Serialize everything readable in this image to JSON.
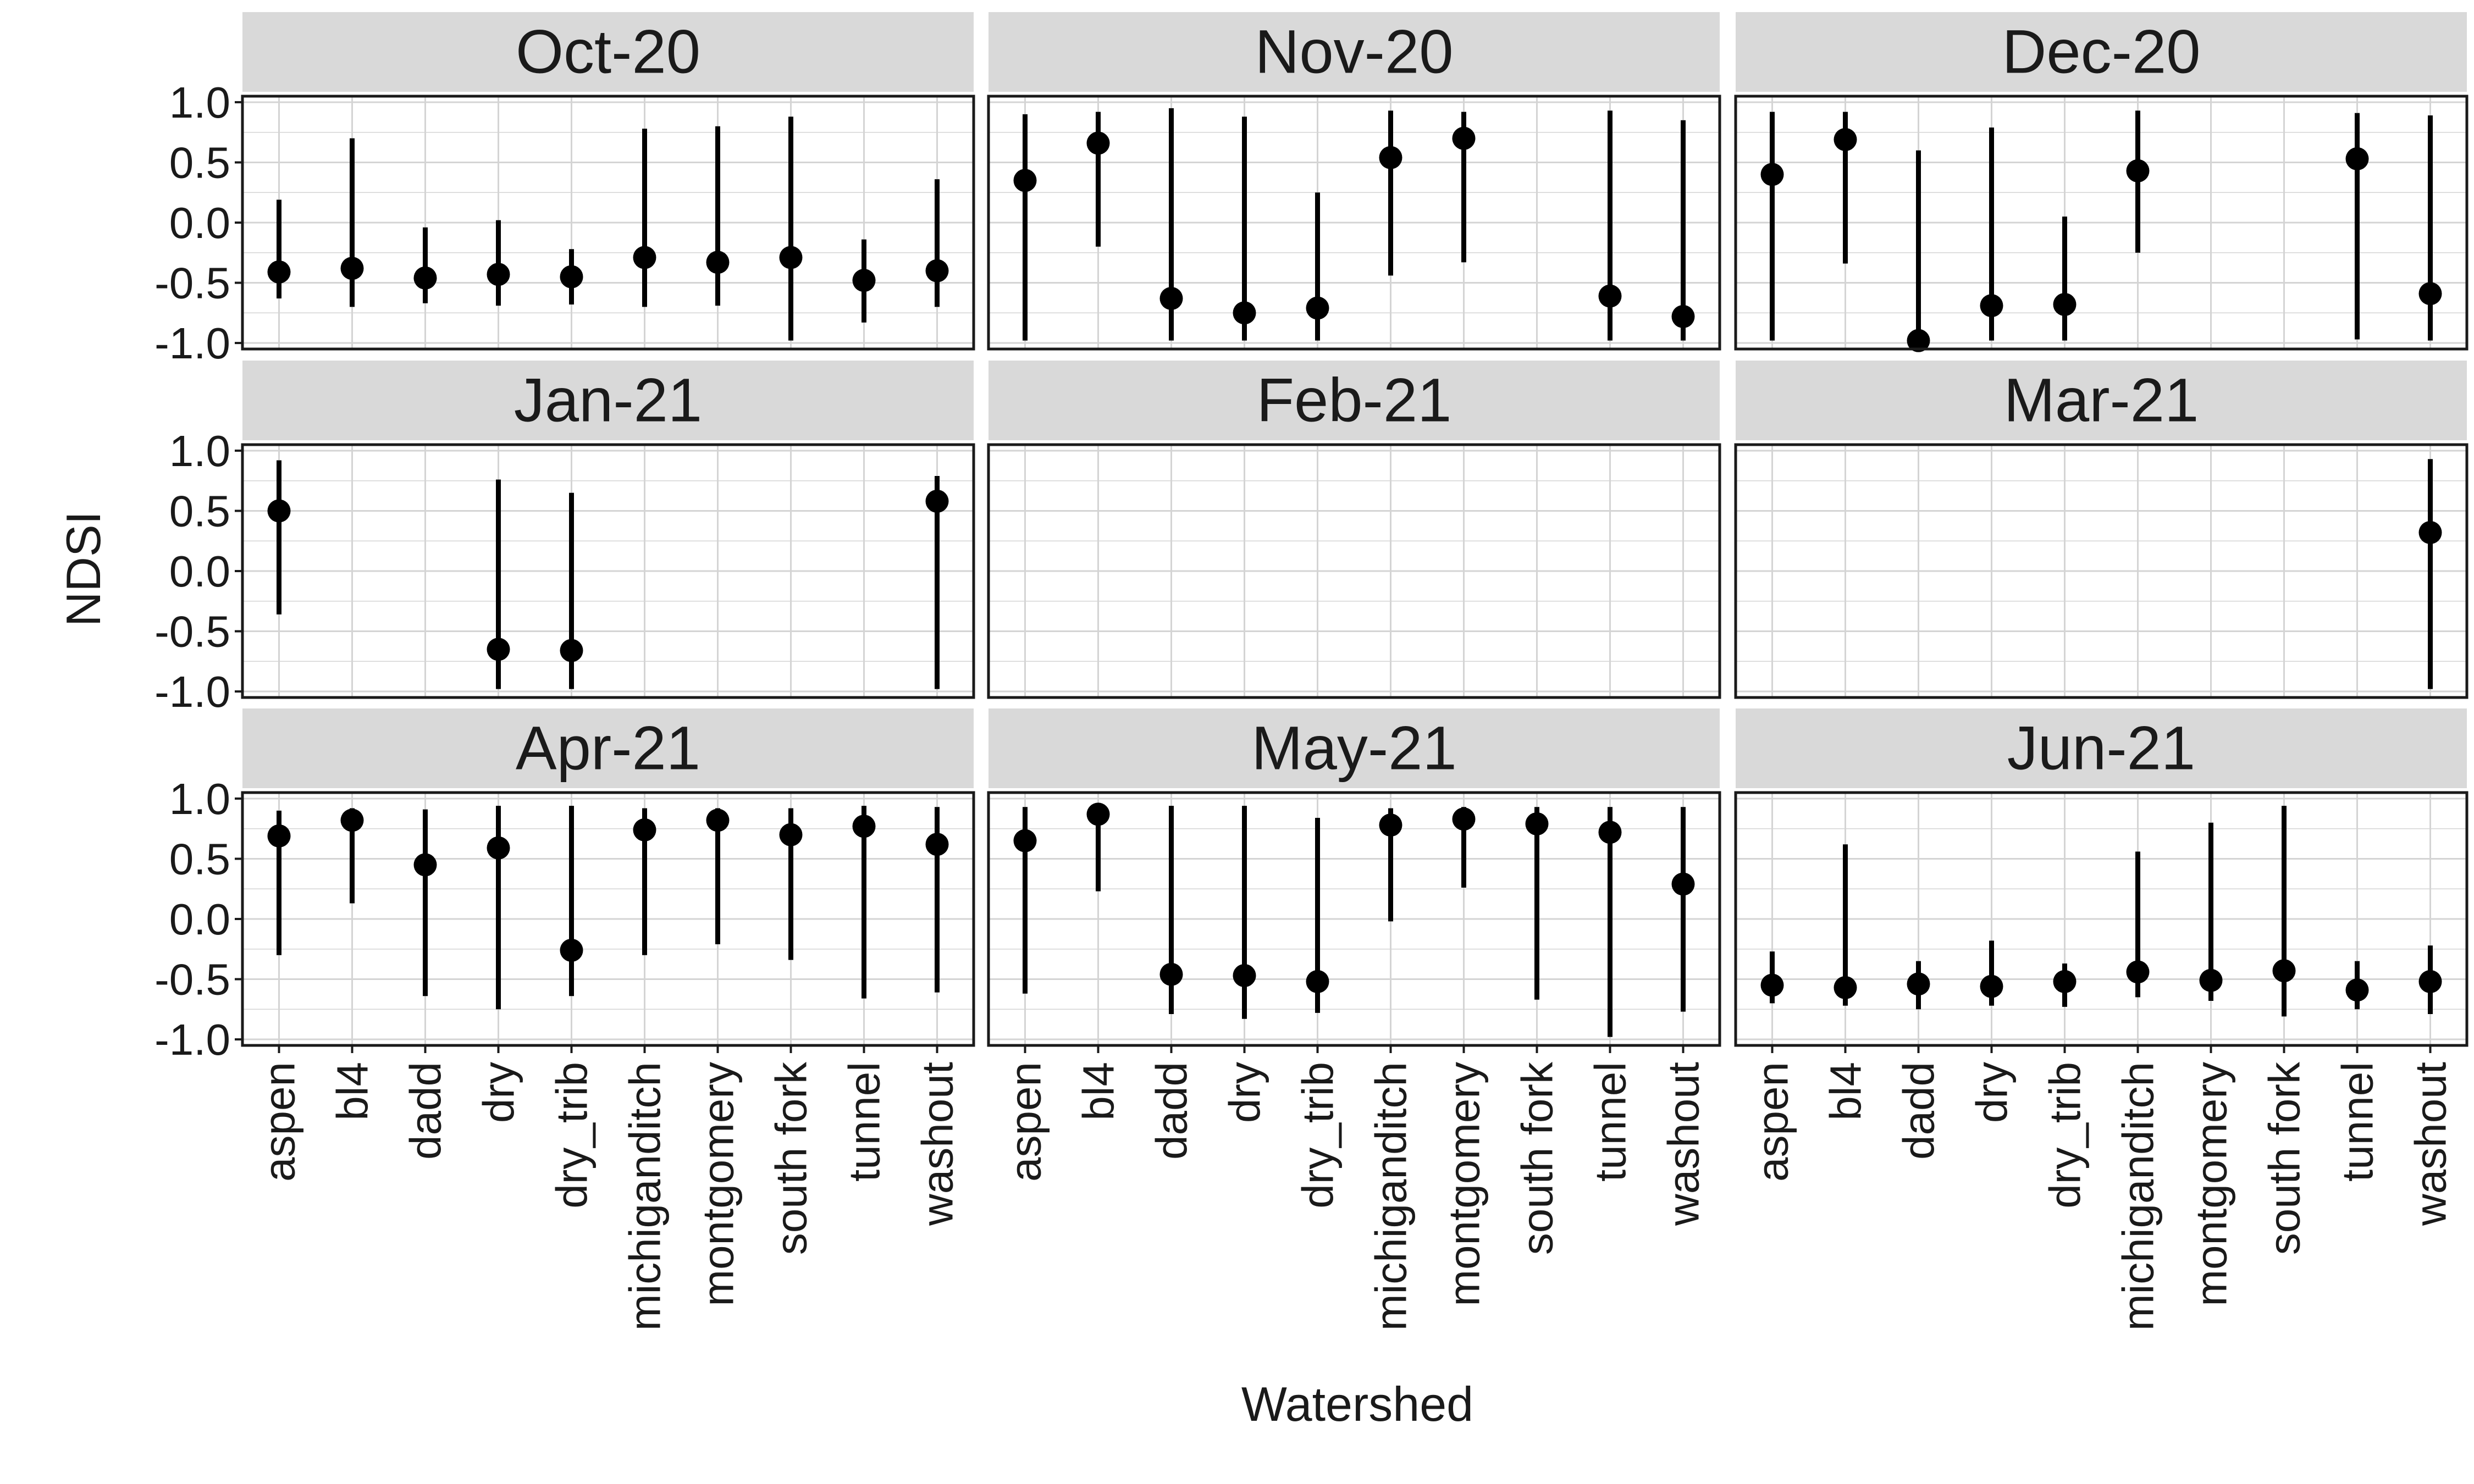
{
  "chart_data": {
    "type": "scatter",
    "facet_layout": {
      "rows": 3,
      "cols": 3
    },
    "xlabel": "Watershed",
    "ylabel": "NDSI",
    "categories": [
      "aspen",
      "bl4",
      "dadd",
      "dry",
      "dry_trib",
      "michiganditch",
      "montgomery",
      "south fork",
      "tunnel",
      "washout"
    ],
    "ylim": [
      -1.05,
      1.05
    ],
    "yticks": [
      1.0,
      0.5,
      0.0,
      -0.5,
      -1.0
    ],
    "ytick_labels": [
      "1.0",
      "0.5",
      "0.0",
      "-0.5",
      "-1.0"
    ],
    "grid": true,
    "legend": "none",
    "panels": [
      {
        "title": "Oct-20",
        "points": [
          {
            "x": "aspen",
            "mean": -0.41,
            "low": -0.63,
            "high": 0.19
          },
          {
            "x": "bl4",
            "mean": -0.38,
            "low": -0.7,
            "high": 0.7
          },
          {
            "x": "dadd",
            "mean": -0.46,
            "low": -0.67,
            "high": -0.04
          },
          {
            "x": "dry",
            "mean": -0.43,
            "low": -0.69,
            "high": 0.02
          },
          {
            "x": "dry_trib",
            "mean": -0.45,
            "low": -0.68,
            "high": -0.22
          },
          {
            "x": "michiganditch",
            "mean": -0.29,
            "low": -0.7,
            "high": 0.78
          },
          {
            "x": "montgomery",
            "mean": -0.33,
            "low": -0.69,
            "high": 0.8
          },
          {
            "x": "south fork",
            "mean": -0.29,
            "low": -0.98,
            "high": 0.88
          },
          {
            "x": "tunnel",
            "mean": -0.48,
            "low": -0.83,
            "high": -0.14
          },
          {
            "x": "washout",
            "mean": -0.4,
            "low": -0.7,
            "high": 0.36
          }
        ]
      },
      {
        "title": "Nov-20",
        "points": [
          {
            "x": "aspen",
            "mean": 0.35,
            "low": -0.98,
            "high": 0.9
          },
          {
            "x": "bl4",
            "mean": 0.66,
            "low": -0.2,
            "high": 0.92
          },
          {
            "x": "dadd",
            "mean": -0.63,
            "low": -0.98,
            "high": 0.95
          },
          {
            "x": "dry",
            "mean": -0.75,
            "low": -0.98,
            "high": 0.88
          },
          {
            "x": "dry_trib",
            "mean": -0.71,
            "low": -0.98,
            "high": 0.25
          },
          {
            "x": "michiganditch",
            "mean": 0.54,
            "low": -0.44,
            "high": 0.93
          },
          {
            "x": "montgomery",
            "mean": 0.7,
            "low": -0.33,
            "high": 0.92
          },
          {
            "x": "tunnel",
            "mean": -0.61,
            "low": -0.98,
            "high": 0.93
          },
          {
            "x": "washout",
            "mean": -0.78,
            "low": -0.98,
            "high": 0.85
          }
        ]
      },
      {
        "title": "Dec-20",
        "points": [
          {
            "x": "aspen",
            "mean": 0.4,
            "low": -0.98,
            "high": 0.92
          },
          {
            "x": "bl4",
            "mean": 0.69,
            "low": -0.34,
            "high": 0.92
          },
          {
            "x": "dadd",
            "mean": -0.98,
            "low": -1.0,
            "high": 0.6
          },
          {
            "x": "dry",
            "mean": -0.69,
            "low": -0.98,
            "high": 0.79
          },
          {
            "x": "dry_trib",
            "mean": -0.68,
            "low": -0.98,
            "high": 0.05
          },
          {
            "x": "michiganditch",
            "mean": 0.43,
            "low": -0.25,
            "high": 0.93
          },
          {
            "x": "tunnel",
            "mean": 0.53,
            "low": -0.97,
            "high": 0.91
          },
          {
            "x": "washout",
            "mean": -0.59,
            "low": -0.98,
            "high": 0.89
          }
        ]
      },
      {
        "title": "Jan-21",
        "points": [
          {
            "x": "aspen",
            "mean": 0.5,
            "low": -0.36,
            "high": 0.92
          },
          {
            "x": "dry",
            "mean": -0.65,
            "low": -0.98,
            "high": 0.76
          },
          {
            "x": "dry_trib",
            "mean": -0.66,
            "low": -0.98,
            "high": 0.65
          },
          {
            "x": "washout",
            "mean": 0.58,
            "low": -0.98,
            "high": 0.79
          }
        ]
      },
      {
        "title": "Feb-21",
        "points": []
      },
      {
        "title": "Mar-21",
        "points": [
          {
            "x": "washout",
            "mean": 0.32,
            "low": -0.98,
            "high": 0.93
          }
        ]
      },
      {
        "title": "Apr-21",
        "points": [
          {
            "x": "aspen",
            "mean": 0.69,
            "low": -0.3,
            "high": 0.9
          },
          {
            "x": "bl4",
            "mean": 0.82,
            "low": 0.13,
            "high": 0.92
          },
          {
            "x": "dadd",
            "mean": 0.45,
            "low": -0.64,
            "high": 0.91
          },
          {
            "x": "dry",
            "mean": 0.59,
            "low": -0.75,
            "high": 0.94
          },
          {
            "x": "dry_trib",
            "mean": -0.26,
            "low": -0.64,
            "high": 0.94
          },
          {
            "x": "michiganditch",
            "mean": 0.74,
            "low": -0.3,
            "high": 0.92
          },
          {
            "x": "montgomery",
            "mean": 0.82,
            "low": -0.21,
            "high": 0.92
          },
          {
            "x": "south fork",
            "mean": 0.7,
            "low": -0.34,
            "high": 0.92
          },
          {
            "x": "tunnel",
            "mean": 0.77,
            "low": -0.66,
            "high": 0.94
          },
          {
            "x": "washout",
            "mean": 0.62,
            "low": -0.61,
            "high": 0.93
          }
        ]
      },
      {
        "title": "May-21",
        "points": [
          {
            "x": "aspen",
            "mean": 0.65,
            "low": -0.62,
            "high": 0.93
          },
          {
            "x": "bl4",
            "mean": 0.87,
            "low": 0.23,
            "high": 0.93
          },
          {
            "x": "dadd",
            "mean": -0.46,
            "low": -0.79,
            "high": 0.94
          },
          {
            "x": "dry",
            "mean": -0.47,
            "low": -0.83,
            "high": 0.94
          },
          {
            "x": "dry_trib",
            "mean": -0.52,
            "low": -0.78,
            "high": 0.84
          },
          {
            "x": "michiganditch",
            "mean": 0.78,
            "low": -0.02,
            "high": 0.92
          },
          {
            "x": "montgomery",
            "mean": 0.83,
            "low": 0.26,
            "high": 0.93
          },
          {
            "x": "south fork",
            "mean": 0.79,
            "low": -0.67,
            "high": 0.93
          },
          {
            "x": "tunnel",
            "mean": 0.72,
            "low": -0.98,
            "high": 0.93
          },
          {
            "x": "washout",
            "mean": 0.29,
            "low": -0.77,
            "high": 0.93
          }
        ]
      },
      {
        "title": "Jun-21",
        "points": [
          {
            "x": "aspen",
            "mean": -0.55,
            "low": -0.7,
            "high": -0.27
          },
          {
            "x": "bl4",
            "mean": -0.57,
            "low": -0.72,
            "high": 0.62
          },
          {
            "x": "dadd",
            "mean": -0.54,
            "low": -0.75,
            "high": -0.35
          },
          {
            "x": "dry",
            "mean": -0.56,
            "low": -0.72,
            "high": -0.18
          },
          {
            "x": "dry_trib",
            "mean": -0.52,
            "low": -0.73,
            "high": -0.37
          },
          {
            "x": "michiganditch",
            "mean": -0.44,
            "low": -0.65,
            "high": 0.56
          },
          {
            "x": "montgomery",
            "mean": -0.51,
            "low": -0.68,
            "high": 0.8
          },
          {
            "x": "south fork",
            "mean": -0.43,
            "low": -0.81,
            "high": 0.94
          },
          {
            "x": "tunnel",
            "mean": -0.59,
            "low": -0.75,
            "high": -0.35
          },
          {
            "x": "washout",
            "mean": -0.52,
            "low": -0.79,
            "high": -0.22
          }
        ]
      }
    ],
    "colors": {
      "point": "#000000",
      "strip_bg": "#d9d9d9",
      "panel_border": "#1a1a1a",
      "grid": "#d4d4d4",
      "text": "#1a1a1a"
    }
  }
}
